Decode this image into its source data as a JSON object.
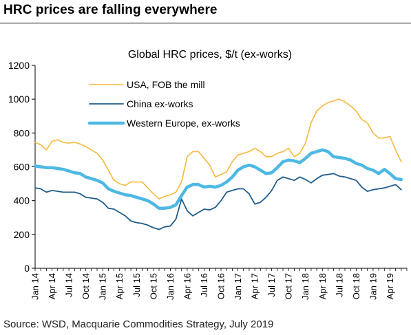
{
  "header": {
    "title": "HRC prices are falling everywhere"
  },
  "footer": {
    "source": "Source: WSD, Macquarie Commodities Strategy, July 2019"
  },
  "chart_data": {
    "type": "line",
    "title": "Global HRC prices, $/t (ex-works)",
    "xlabel": "",
    "ylabel": "",
    "ylim": [
      0,
      1200
    ],
    "yticks": [
      0,
      200,
      400,
      600,
      800,
      1000,
      1200
    ],
    "x_start": "Jan 14",
    "x_end": "Jun 19",
    "xtick_labels": [
      "Jan 14",
      "Apr 14",
      "Jul 14",
      "Oct 14",
      "Jan 15",
      "Apr 15",
      "Jul 15",
      "Oct 15",
      "Jan 16",
      "Apr 16",
      "Jul 16",
      "Oct 16",
      "Jan 17",
      "Apr 17",
      "Jul 17",
      "Oct 17",
      "Jan 18",
      "Apr 18",
      "Jul 18",
      "Oct 18",
      "Jan 19",
      "Apr 19"
    ],
    "legend_position": "top-left",
    "grid": false,
    "series": [
      {
        "name": "USA, FOB the mill",
        "color": "#F6B839",
        "line_width": "thin",
        "points": [
          [
            "Jan 14",
            745
          ],
          [
            "Feb 14",
            730
          ],
          [
            "Mar 14",
            700
          ],
          [
            "Apr 14",
            750
          ],
          [
            "May 14",
            760
          ],
          [
            "Jun 14",
            745
          ],
          [
            "Jul 14",
            740
          ],
          [
            "Aug 14",
            745
          ],
          [
            "Sep 14",
            735
          ],
          [
            "Oct 14",
            720
          ],
          [
            "Nov 14",
            700
          ],
          [
            "Dec 14",
            680
          ],
          [
            "Jan 15",
            640
          ],
          [
            "Feb 15",
            580
          ],
          [
            "Mar 15",
            520
          ],
          [
            "Apr 15",
            500
          ],
          [
            "May 15",
            490
          ],
          [
            "Jun 15",
            510
          ],
          [
            "Jul 15",
            510
          ],
          [
            "Aug 15",
            510
          ],
          [
            "Sep 15",
            475
          ],
          [
            "Oct 15",
            440
          ],
          [
            "Nov 15",
            410
          ],
          [
            "Dec 15",
            425
          ],
          [
            "Jan 16",
            435
          ],
          [
            "Feb 16",
            450
          ],
          [
            "Mar 16",
            510
          ],
          [
            "Apr 16",
            660
          ],
          [
            "May 16",
            690
          ],
          [
            "Jun 16",
            690
          ],
          [
            "Jul 16",
            650
          ],
          [
            "Aug 16",
            610
          ],
          [
            "Sep 16",
            540
          ],
          [
            "Oct 16",
            555
          ],
          [
            "Nov 16",
            570
          ],
          [
            "Dec 16",
            630
          ],
          [
            "Jan 17",
            670
          ],
          [
            "Feb 17",
            680
          ],
          [
            "Mar 17",
            690
          ],
          [
            "Apr 17",
            710
          ],
          [
            "May 17",
            690
          ],
          [
            "Jun 17",
            660
          ],
          [
            "Jul 17",
            660
          ],
          [
            "Aug 17",
            680
          ],
          [
            "Sep 17",
            690
          ],
          [
            "Oct 17",
            710
          ],
          [
            "Nov 17",
            660
          ],
          [
            "Dec 17",
            680
          ],
          [
            "Jan 18",
            740
          ],
          [
            "Feb 18",
            860
          ],
          [
            "Mar 18",
            930
          ],
          [
            "Apr 18",
            960
          ],
          [
            "May 18",
            980
          ],
          [
            "Jun 18",
            990
          ],
          [
            "Jul 18",
            1000
          ],
          [
            "Aug 18",
            985
          ],
          [
            "Sep 18",
            960
          ],
          [
            "Oct 18",
            930
          ],
          [
            "Nov 18",
            880
          ],
          [
            "Dec 18",
            860
          ],
          [
            "Jan 19",
            800
          ],
          [
            "Feb 19",
            770
          ],
          [
            "Mar 19",
            770
          ],
          [
            "Apr 19",
            780
          ],
          [
            "May 19",
            700
          ],
          [
            "Jun 19",
            630
          ]
        ]
      },
      {
        "name": "China ex-works",
        "color": "#1F5D8C",
        "line_width": "medium",
        "points": [
          [
            "Jan 14",
            475
          ],
          [
            "Feb 14",
            470
          ],
          [
            "Mar 14",
            450
          ],
          [
            "Apr 14",
            460
          ],
          [
            "May 14",
            455
          ],
          [
            "Jun 14",
            450
          ],
          [
            "Jul 14",
            450
          ],
          [
            "Aug 14",
            450
          ],
          [
            "Sep 14",
            440
          ],
          [
            "Oct 14",
            420
          ],
          [
            "Nov 14",
            415
          ],
          [
            "Dec 14",
            410
          ],
          [
            "Jan 15",
            390
          ],
          [
            "Feb 15",
            355
          ],
          [
            "Mar 15",
            350
          ],
          [
            "Apr 15",
            330
          ],
          [
            "May 15",
            310
          ],
          [
            "Jun 15",
            280
          ],
          [
            "Jul 15",
            270
          ],
          [
            "Aug 15",
            265
          ],
          [
            "Sep 15",
            255
          ],
          [
            "Oct 15",
            240
          ],
          [
            "Nov 15",
            230
          ],
          [
            "Dec 15",
            245
          ],
          [
            "Jan 16",
            250
          ],
          [
            "Feb 16",
            290
          ],
          [
            "Mar 16",
            410
          ],
          [
            "Apr 16",
            340
          ],
          [
            "May 16",
            310
          ],
          [
            "Jun 16",
            330
          ],
          [
            "Jul 16",
            350
          ],
          [
            "Aug 16",
            345
          ],
          [
            "Sep 16",
            360
          ],
          [
            "Oct 16",
            400
          ],
          [
            "Nov 16",
            450
          ],
          [
            "Dec 16",
            460
          ],
          [
            "Jan 17",
            470
          ],
          [
            "Feb 17",
            470
          ],
          [
            "Mar 17",
            440
          ],
          [
            "Apr 17",
            380
          ],
          [
            "May 17",
            390
          ],
          [
            "Jun 17",
            420
          ],
          [
            "Jul 17",
            460
          ],
          [
            "Aug 17",
            520
          ],
          [
            "Sep 17",
            540
          ],
          [
            "Oct 17",
            530
          ],
          [
            "Nov 17",
            520
          ],
          [
            "Dec 17",
            540
          ],
          [
            "Jan 18",
            525
          ],
          [
            "Feb 18",
            505
          ],
          [
            "Mar 18",
            530
          ],
          [
            "Apr 18",
            550
          ],
          [
            "May 18",
            555
          ],
          [
            "Jun 18",
            560
          ],
          [
            "Jul 18",
            545
          ],
          [
            "Aug 18",
            540
          ],
          [
            "Sep 18",
            530
          ],
          [
            "Oct 18",
            520
          ],
          [
            "Nov 18",
            480
          ],
          [
            "Dec 18",
            455
          ],
          [
            "Jan 19",
            465
          ],
          [
            "Feb 19",
            470
          ],
          [
            "Mar 19",
            475
          ],
          [
            "Apr 19",
            485
          ],
          [
            "May 19",
            495
          ],
          [
            "Jun 19",
            465
          ]
        ]
      },
      {
        "name": "Western Europe, ex-works",
        "color": "#4DB8E4",
        "line_width": "thick",
        "points": [
          [
            "Jan 14",
            605
          ],
          [
            "Feb 14",
            600
          ],
          [
            "Mar 14",
            595
          ],
          [
            "Apr 14",
            595
          ],
          [
            "May 14",
            590
          ],
          [
            "Jun 14",
            585
          ],
          [
            "Jul 14",
            575
          ],
          [
            "Aug 14",
            565
          ],
          [
            "Sep 14",
            560
          ],
          [
            "Oct 14",
            540
          ],
          [
            "Nov 14",
            530
          ],
          [
            "Dec 14",
            520
          ],
          [
            "Jan 15",
            505
          ],
          [
            "Feb 15",
            470
          ],
          [
            "Mar 15",
            455
          ],
          [
            "Apr 15",
            445
          ],
          [
            "May 15",
            435
          ],
          [
            "Jun 15",
            430
          ],
          [
            "Jul 15",
            420
          ],
          [
            "Aug 15",
            410
          ],
          [
            "Sep 15",
            400
          ],
          [
            "Oct 15",
            380
          ],
          [
            "Nov 15",
            355
          ],
          [
            "Dec 15",
            355
          ],
          [
            "Jan 16",
            360
          ],
          [
            "Feb 16",
            375
          ],
          [
            "Mar 16",
            430
          ],
          [
            "Apr 16",
            480
          ],
          [
            "May 16",
            495
          ],
          [
            "Jun 16",
            495
          ],
          [
            "Jul 16",
            480
          ],
          [
            "Aug 16",
            485
          ],
          [
            "Sep 16",
            480
          ],
          [
            "Oct 16",
            490
          ],
          [
            "Nov 16",
            510
          ],
          [
            "Dec 16",
            540
          ],
          [
            "Jan 17",
            580
          ],
          [
            "Feb 17",
            600
          ],
          [
            "Mar 17",
            610
          ],
          [
            "Apr 17",
            600
          ],
          [
            "May 17",
            580
          ],
          [
            "Jun 17",
            560
          ],
          [
            "Jul 17",
            565
          ],
          [
            "Aug 17",
            595
          ],
          [
            "Sep 17",
            630
          ],
          [
            "Oct 17",
            640
          ],
          [
            "Nov 17",
            635
          ],
          [
            "Dec 17",
            625
          ],
          [
            "Jan 18",
            650
          ],
          [
            "Feb 18",
            680
          ],
          [
            "Mar 18",
            690
          ],
          [
            "Apr 18",
            700
          ],
          [
            "May 18",
            690
          ],
          [
            "Jun 18",
            660
          ],
          [
            "Jul 18",
            655
          ],
          [
            "Aug 18",
            650
          ],
          [
            "Sep 18",
            640
          ],
          [
            "Oct 18",
            620
          ],
          [
            "Nov 18",
            610
          ],
          [
            "Dec 18",
            590
          ],
          [
            "Jan 19",
            580
          ],
          [
            "Feb 19",
            560
          ],
          [
            "Mar 19",
            585
          ],
          [
            "Apr 19",
            560
          ],
          [
            "May 19",
            530
          ],
          [
            "Jun 19",
            525
          ]
        ]
      }
    ]
  }
}
